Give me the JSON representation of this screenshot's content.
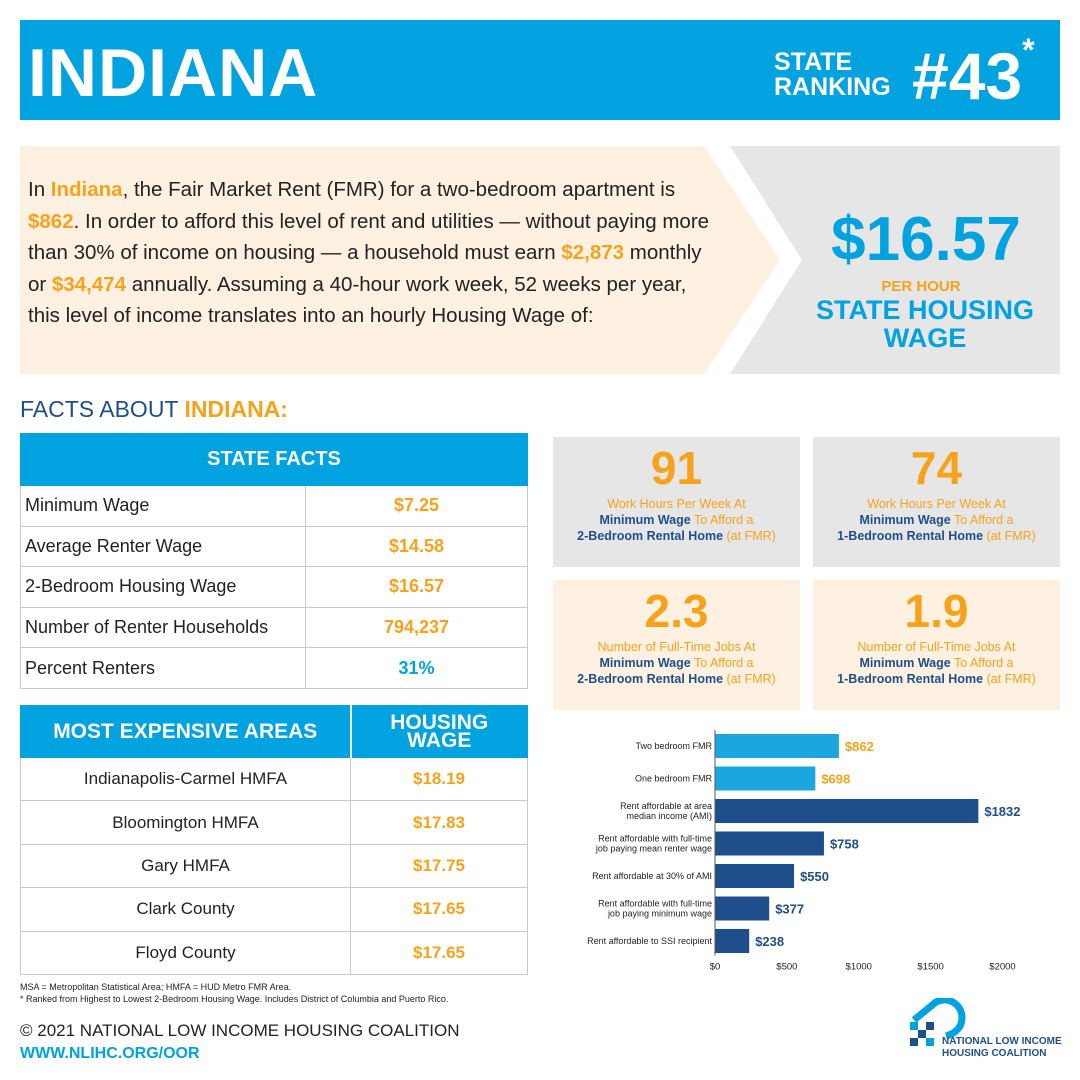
{
  "header": {
    "state": "INDIANA",
    "ranking_label_line1": "STATE",
    "ranking_label_line2": "RANKING",
    "ranking_value": "#43",
    "ranking_asterisk": "*"
  },
  "intro": {
    "t1": "In ",
    "state": "Indiana",
    "t2": ", the Fair Market Rent (FMR) for a two-bedroom apartment is ",
    "fmr": "$862",
    "t3": ". In order to afford this level of rent and utilities — without paying more than 30% of income on housing — a household must earn ",
    "monthly": "$2,873",
    "t4": " monthly or ",
    "annual": "$34,474",
    "t5": " annually. Assuming a 40-hour work week, 52 weeks per year, this level of income translates into an hourly Housing Wage of:"
  },
  "housing_wage": {
    "amount": "$16.57",
    "per_hour": "PER HOUR",
    "label": "STATE HOUSING WAGE"
  },
  "facts_title": {
    "prefix": "FACTS ABOUT ",
    "state": "INDIANA:"
  },
  "state_facts": {
    "header": "STATE FACTS",
    "rows": [
      {
        "label": "Minimum Wage",
        "value": "$7.25"
      },
      {
        "label": "Average Renter Wage",
        "value": "$14.58"
      },
      {
        "label": "2-Bedroom Housing Wage",
        "value": "$16.57"
      },
      {
        "label": "Number of Renter Households",
        "value": "794,237"
      },
      {
        "label": "Percent Renters",
        "value": "31%"
      }
    ]
  },
  "expensive_areas": {
    "header_area": "MOST EXPENSIVE AREAS",
    "header_wage_line1": "HOUSING",
    "header_wage_line2": "WAGE",
    "rows": [
      {
        "area": "Indianapolis-Carmel HMFA",
        "wage": "$18.19"
      },
      {
        "area": "Bloomington HMFA",
        "wage": "$17.83"
      },
      {
        "area": "Gary HMFA",
        "wage": "$17.75"
      },
      {
        "area": "Clark County",
        "wage": "$17.65"
      },
      {
        "area": "Floyd County",
        "wage": "$17.65"
      }
    ]
  },
  "cards": [
    {
      "value": "91",
      "line1": "Work Hours Per Week At",
      "bold1": "Minimum Wage",
      "line2": " To Afford a",
      "bold2": "2-Bedroom Rental Home",
      "line3": " (at FMR)"
    },
    {
      "value": "74",
      "line1": "Work Hours Per Week At",
      "bold1": "Minimum Wage",
      "line2": " To Afford a",
      "bold2": "1-Bedroom Rental Home",
      "line3": " (at FMR)"
    },
    {
      "value": "2.3",
      "line1": "Number of Full-Time Jobs At",
      "bold1": "Minimum Wage",
      "line2": " To Afford a",
      "bold2": "2-Bedroom Rental Home",
      "line3": " (at FMR)"
    },
    {
      "value": "1.9",
      "line1": "Number of Full-Time Jobs At",
      "bold1": "Minimum Wage",
      "line2": " To Afford a",
      "bold2": "1-Bedroom Rental Home",
      "line3": " (at FMR)"
    }
  ],
  "chart_data": {
    "type": "bar",
    "orientation": "horizontal",
    "categories": [
      [
        "Two bedroom FMR"
      ],
      [
        "One bedroom FMR"
      ],
      [
        "Rent affordable at area",
        "median income (AMI)"
      ],
      [
        "Rent affordable with full-time",
        "job paying mean renter wage"
      ],
      [
        "Rent affordable at 30% of AMI"
      ],
      [
        "Rent affordable with full-time",
        "job paying minimum wage"
      ],
      [
        "Rent affordable to SSI recipient"
      ]
    ],
    "values": [
      862,
      698,
      1832,
      758,
      550,
      377,
      238
    ],
    "data_labels": [
      "$862",
      "$698",
      "$1832",
      "$758",
      "$550",
      "$377",
      "$238"
    ],
    "bar_colors": [
      "#1aa7e0",
      "#1aa7e0",
      "#1f4e8c",
      "#1f4e8c",
      "#1f4e8c",
      "#1f4e8c",
      "#1f4e8c"
    ],
    "label_colors": [
      "#f7a21b",
      "#f7a21b",
      "#1f4e8c",
      "#1f4e8c",
      "#1f4e8c",
      "#1f4e8c",
      "#1f4e8c"
    ],
    "xticks": [
      0,
      500,
      1000,
      1500,
      2000
    ],
    "xtick_labels": [
      "$0",
      "$500",
      "$1000",
      "$1500",
      "$2000"
    ],
    "xlim": [
      0,
      2000
    ],
    "grid": false
  },
  "footnotes": {
    "line1": "MSA = Metropolitan Statistical Area; HMFA = HUD Metro FMR Area.",
    "line2": "* Ranked from Highest to Lowest 2-Bedroom Housing Wage. Includes District of Columbia and Puerto Rico."
  },
  "footer": {
    "copyright": "© 2021 NATIONAL LOW INCOME HOUSING COALITION",
    "url": "WWW.NLIHC.ORG/OOR"
  },
  "logo": {
    "line1": "NATIONAL LOW INCOME",
    "line2": "HOUSING COALITION"
  },
  "colors": {
    "blue": "#00a3e0",
    "orange": "#f7a21b",
    "navy": "#1f4e8c",
    "cream": "#fef1e1",
    "gray": "#e6e6e6"
  }
}
